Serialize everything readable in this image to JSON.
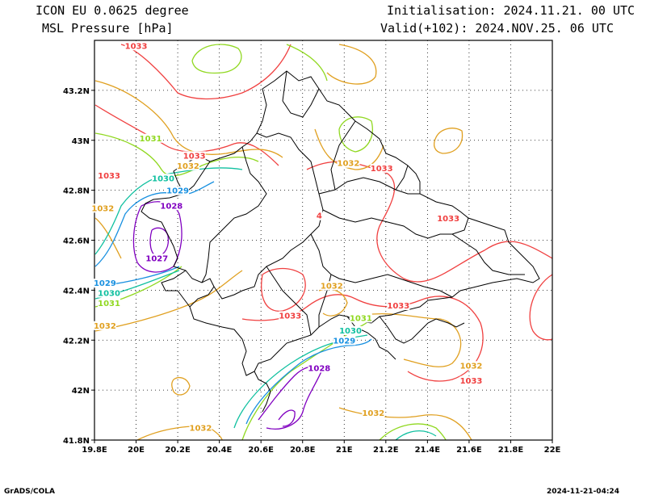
{
  "header": {
    "model": "ICON EU 0.0625 degree",
    "variable": "MSL Pressure [hPa]",
    "init": "Initialisation: 2024.11.21. 00 UTC",
    "valid": "Valid(+102): 2024.NOV.25. 06 UTC"
  },
  "footer": {
    "credit": "GrADS/COLA",
    "timestamp": "2024-11-21-04:24"
  },
  "axes": {
    "lon_ticks": [
      "19.8E",
      "20E",
      "20.2E",
      "20.4E",
      "20.6E",
      "20.8E",
      "21E",
      "21.2E",
      "21.4E",
      "21.6E",
      "21.8E",
      "22E"
    ],
    "lat_ticks": [
      "43.2N",
      "43N",
      "42.8N",
      "42.6N",
      "42.4N",
      "42.2N",
      "42N",
      "41.8N"
    ],
    "lon_range": [
      19.8,
      22.0
    ],
    "lat_range": [
      41.8,
      43.4
    ],
    "grid": "dotted"
  },
  "contour_colors": {
    "1027": "#8000c0",
    "1028": "#8000c0",
    "1029": "#1890e0",
    "1030": "#10c0a0",
    "1031": "#90d820",
    "1032": "#e0a020",
    "1033": "#f04040"
  },
  "contour_labels": [
    {
      "value": "1033",
      "lon": 20.0,
      "lat": 43.37
    },
    {
      "value": "1031",
      "lon": 20.07,
      "lat": 43.0
    },
    {
      "value": "1033",
      "lon": 20.28,
      "lat": 42.93
    },
    {
      "value": "1032",
      "lon": 20.25,
      "lat": 42.89
    },
    {
      "value": "1033",
      "lon": 19.87,
      "lat": 42.85
    },
    {
      "value": "1030",
      "lon": 20.13,
      "lat": 42.84
    },
    {
      "value": "1029",
      "lon": 20.2,
      "lat": 42.79
    },
    {
      "value": "1028",
      "lon": 20.17,
      "lat": 42.73
    },
    {
      "value": "1032",
      "lon": 19.84,
      "lat": 42.72
    },
    {
      "value": "1027",
      "lon": 20.1,
      "lat": 42.52
    },
    {
      "value": "1029",
      "lon": 19.85,
      "lat": 42.42
    },
    {
      "value": "1030",
      "lon": 19.87,
      "lat": 42.38
    },
    {
      "value": "1031",
      "lon": 19.87,
      "lat": 42.34
    },
    {
      "value": "1032",
      "lon": 19.85,
      "lat": 42.25
    },
    {
      "value": "1032",
      "lon": 21.02,
      "lat": 42.9
    },
    {
      "value": "1033",
      "lon": 21.18,
      "lat": 42.88
    },
    {
      "value": "1033",
      "lon": 21.5,
      "lat": 42.68
    },
    {
      "value": "1032",
      "lon": 20.94,
      "lat": 42.41
    },
    {
      "value": "1033",
      "lon": 21.26,
      "lat": 42.33
    },
    {
      "value": "1033",
      "lon": 20.74,
      "lat": 42.29
    },
    {
      "value": "1031",
      "lon": 21.08,
      "lat": 42.28
    },
    {
      "value": "1030",
      "lon": 21.03,
      "lat": 42.23
    },
    {
      "value": "1029",
      "lon": 21.0,
      "lat": 42.19
    },
    {
      "value": "1028",
      "lon": 20.88,
      "lat": 42.08
    },
    {
      "value": "1032",
      "lon": 21.61,
      "lat": 42.09
    },
    {
      "value": "1033",
      "lon": 21.61,
      "lat": 42.03
    },
    {
      "value": "1032",
      "lon": 21.14,
      "lat": 41.9
    },
    {
      "value": "1032",
      "lon": 20.31,
      "lat": 41.84
    },
    {
      "value": "4",
      "lon": 20.88,
      "lat": 42.69
    }
  ]
}
